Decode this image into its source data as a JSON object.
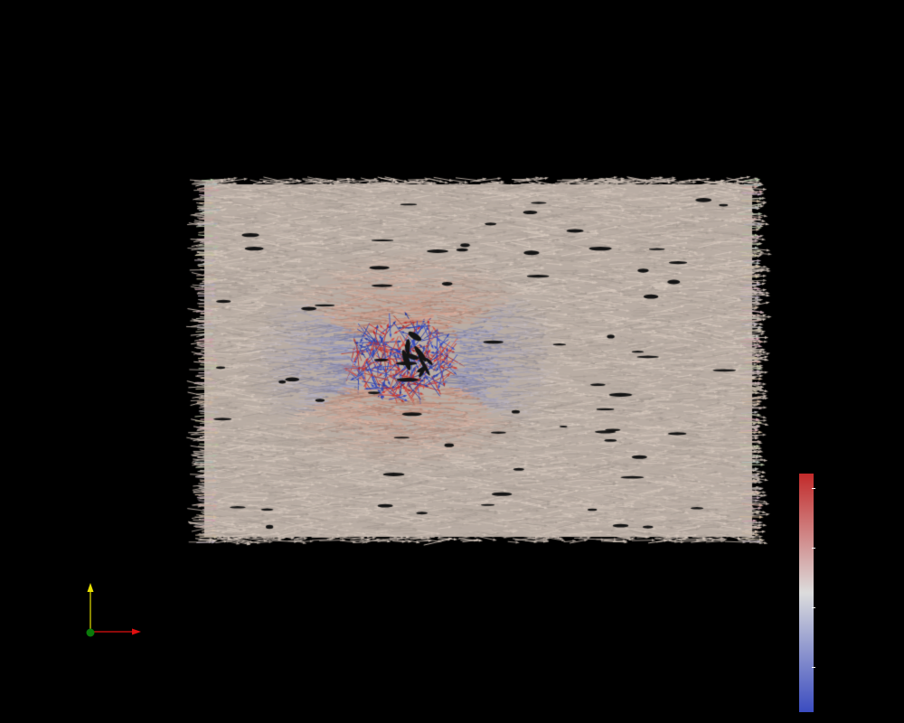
{
  "view": {
    "background": "#000000"
  },
  "glyph_field": {
    "base_color": "#c9bcb2",
    "warm_color": "#d4785e",
    "cool_color": "#4d63c9",
    "hot_color": "#c82a2a",
    "deep_blue": "#2b3fb8",
    "dark_speck": "#141414"
  },
  "orientation_axes": {
    "x_axis_color": "#e01010",
    "y_axis_color": "#e8e000",
    "z_axis_color": "#0a7a0a"
  },
  "scalar_bar": {
    "colormap": "cool-to-warm",
    "top_color": "#c22a2a",
    "mid_color": "#dcdcdc",
    "bottom_color": "#3b4cc0",
    "tick_count": 4
  }
}
